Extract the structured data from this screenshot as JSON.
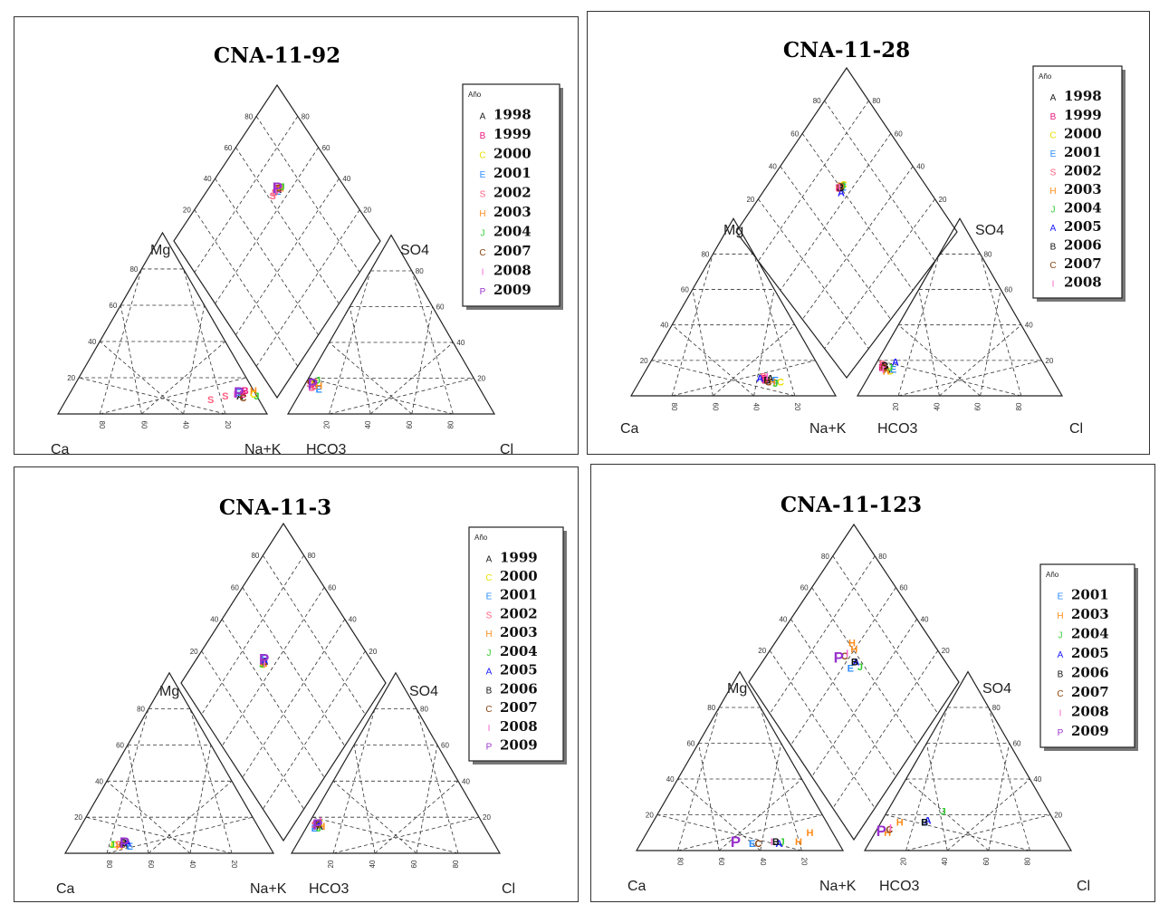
{
  "colors": {
    "A": "#222222",
    "B": "#e8197d",
    "C": "#e8e000",
    "E": "#2a8cff",
    "S": "#ff6080",
    "H": "#ff8c1a",
    "J": "#33cc33",
    "Ablue": "#1a1aff",
    "Bblack": "#111111",
    "Cbrown": "#8b4513",
    "I": "#ff66cc",
    "P": "#9933cc"
  },
  "chart_data": [
    {
      "type": "scatter",
      "subtype": "piper-diagram",
      "title": "CNA-11-92",
      "cation_labels": {
        "left": "Ca",
        "top": "Mg",
        "right": "Na+K"
      },
      "anion_labels": {
        "left": "HCO3",
        "top": "SO4",
        "right": "Cl"
      },
      "tick_labels": [
        "20",
        "40",
        "60",
        "80"
      ],
      "legend": {
        "title": "Año",
        "entries": [
          {
            "symbol": "A",
            "year": "1998",
            "color": "#222222"
          },
          {
            "symbol": "B",
            "year": "1999",
            "color": "#e8197d"
          },
          {
            "symbol": "C",
            "year": "2000",
            "color": "#e8e000"
          },
          {
            "symbol": "E",
            "year": "2001",
            "color": "#2a8cff"
          },
          {
            "symbol": "S",
            "year": "2002",
            "color": "#ff6080"
          },
          {
            "symbol": "H",
            "year": "2003",
            "color": "#ff8c1a"
          },
          {
            "symbol": "J",
            "year": "2004",
            "color": "#33cc33"
          },
          {
            "symbol": "C",
            "year": "2007",
            "color": "#8b4513"
          },
          {
            "symbol": "I",
            "year": "2008",
            "color": "#ff66cc"
          },
          {
            "symbol": "P",
            "year": "2009",
            "color": "#9933cc",
            "large": true
          }
        ]
      },
      "samples": [
        {
          "symbol": "A",
          "color": "#222222",
          "cation": [
            8,
            83
          ],
          "anion": [
            15,
            80
          ]
        },
        {
          "symbol": "B",
          "color": "#e8197d",
          "cation": [
            9,
            84
          ],
          "anion": [
            13,
            82
          ]
        },
        {
          "symbol": "B",
          "color": "#e8197d",
          "cation": [
            11,
            84
          ],
          "anion": [
            14,
            80
          ]
        },
        {
          "symbol": "C",
          "color": "#e8e000",
          "cation": [
            9,
            89
          ],
          "anion": [
            16,
            79
          ]
        },
        {
          "symbol": "E",
          "color": "#2a8cff",
          "cation": [
            10,
            81
          ],
          "anion": [
            12,
            79
          ]
        },
        {
          "symbol": "S",
          "color": "#ff6080",
          "cation": [
            6,
            70
          ],
          "anion": [
            15,
            82
          ]
        },
        {
          "symbol": "S",
          "color": "#ff6080",
          "cation": [
            8,
            76
          ],
          "anion": [
            13,
            82
          ]
        },
        {
          "symbol": "H",
          "color": "#ff8c1a",
          "cation": [
            11,
            88
          ],
          "anion": [
            14,
            78
          ]
        },
        {
          "symbol": "J",
          "color": "#33cc33",
          "cation": [
            8,
            91
          ],
          "anion": [
            17,
            77
          ]
        },
        {
          "symbol": "C",
          "color": "#8b4513",
          "cation": [
            7,
            85
          ],
          "anion": [
            16,
            81
          ]
        },
        {
          "symbol": "I",
          "color": "#ff66cc",
          "cation": [
            9,
            80
          ],
          "anion": [
            13,
            83
          ]
        },
        {
          "symbol": "P",
          "color": "#9933cc",
          "cation": [
            9,
            82
          ],
          "anion": [
            14,
            81
          ]
        }
      ]
    },
    {
      "type": "scatter",
      "subtype": "piper-diagram",
      "title": "CNA-11-28",
      "cation_labels": {
        "left": "Ca",
        "top": "Mg",
        "right": "Na+K"
      },
      "anion_labels": {
        "left": "HCO3",
        "top": "SO4",
        "right": "Cl"
      },
      "tick_labels": [
        "20",
        "40",
        "60",
        "80"
      ],
      "legend": {
        "title": "Año",
        "entries": [
          {
            "symbol": "A",
            "year": "1998",
            "color": "#222222"
          },
          {
            "symbol": "B",
            "year": "1999",
            "color": "#e8197d"
          },
          {
            "symbol": "C",
            "year": "2000",
            "color": "#e8e000"
          },
          {
            "symbol": "E",
            "year": "2001",
            "color": "#2a8cff"
          },
          {
            "symbol": "S",
            "year": "2002",
            "color": "#ff6080"
          },
          {
            "symbol": "H",
            "year": "2003",
            "color": "#ff8c1a"
          },
          {
            "symbol": "J",
            "year": "2004",
            "color": "#33cc33"
          },
          {
            "symbol": "A",
            "year": "2005",
            "color": "#1a1aff"
          },
          {
            "symbol": "B",
            "year": "2006",
            "color": "#111111"
          },
          {
            "symbol": "C",
            "year": "2007",
            "color": "#8b4513"
          },
          {
            "symbol": "I",
            "year": "2008",
            "color": "#ff66cc"
          }
        ]
      },
      "samples": [
        {
          "symbol": "A",
          "color": "#222222",
          "cation": [
            8,
            64
          ],
          "anion": [
            13,
            79
          ]
        },
        {
          "symbol": "B",
          "color": "#e8197d",
          "cation": [
            7,
            62
          ],
          "anion": [
            15,
            80
          ]
        },
        {
          "symbol": "B",
          "color": "#e8197d",
          "cation": [
            8,
            61
          ],
          "anion": [
            14,
            81
          ]
        },
        {
          "symbol": "C",
          "color": "#e8e000",
          "cation": [
            6,
            70
          ],
          "anion": [
            12,
            78
          ]
        },
        {
          "symbol": "E",
          "color": "#2a8cff",
          "cation": [
            7,
            67
          ],
          "anion": [
            13,
            76
          ]
        },
        {
          "symbol": "S",
          "color": "#ff6080",
          "cation": [
            9,
            60
          ],
          "anion": [
            16,
            80
          ]
        },
        {
          "symbol": "H",
          "color": "#ff8c1a",
          "cation": [
            6,
            66
          ],
          "anion": [
            12,
            80
          ]
        },
        {
          "symbol": "J",
          "color": "#33cc33",
          "cation": [
            5,
            68
          ],
          "anion": [
            14,
            77
          ]
        },
        {
          "symbol": "A",
          "color": "#1a1aff",
          "cation": [
            8,
            59
          ],
          "anion": [
            17,
            73
          ]
        },
        {
          "symbol": "B",
          "color": "#111111",
          "cation": [
            7,
            63
          ],
          "anion": [
            15,
            79
          ]
        },
        {
          "symbol": "C",
          "color": "#8b4513",
          "cation": [
            6,
            64
          ],
          "anion": [
            14,
            80
          ]
        },
        {
          "symbol": "I",
          "color": "#ff66cc",
          "cation": [
            9,
            62
          ],
          "anion": [
            13,
            81
          ]
        }
      ]
    },
    {
      "type": "scatter",
      "subtype": "piper-diagram",
      "title": "CNA-11-3",
      "cation_labels": {
        "left": "Ca",
        "top": "Mg",
        "right": "Na+K"
      },
      "anion_labels": {
        "left": "HCO3",
        "top": "SO4",
        "right": "Cl"
      },
      "tick_labels": [
        "20",
        "40",
        "60",
        "80"
      ],
      "legend": {
        "title": "Año",
        "entries": [
          {
            "symbol": "A",
            "year": "1999",
            "color": "#222222"
          },
          {
            "symbol": "C",
            "year": "2000",
            "color": "#e8e000"
          },
          {
            "symbol": "E",
            "year": "2001",
            "color": "#2a8cff"
          },
          {
            "symbol": "S",
            "year": "2002",
            "color": "#ff6080"
          },
          {
            "symbol": "H",
            "year": "2003",
            "color": "#ff8c1a"
          },
          {
            "symbol": "J",
            "year": "2004",
            "color": "#33cc33"
          },
          {
            "symbol": "A",
            "year": "2005",
            "color": "#1a1aff"
          },
          {
            "symbol": "B",
            "year": "2006",
            "color": "#111111"
          },
          {
            "symbol": "C",
            "year": "2007",
            "color": "#8b4513"
          },
          {
            "symbol": "I",
            "year": "2008",
            "color": "#ff66cc"
          },
          {
            "symbol": "P",
            "year": "2009",
            "color": "#9933cc",
            "large": true
          }
        ]
      },
      "samples": [
        {
          "symbol": "A",
          "color": "#222222",
          "cation": [
            3,
            27
          ],
          "anion": [
            13,
            80
          ]
        },
        {
          "symbol": "B",
          "color": "#111111",
          "cation": [
            4,
            26
          ],
          "anion": [
            14,
            81
          ]
        },
        {
          "symbol": "C",
          "color": "#e8e000",
          "cation": [
            3,
            22
          ],
          "anion": [
            15,
            79
          ]
        },
        {
          "symbol": "E",
          "color": "#2a8cff",
          "cation": [
            2,
            30
          ],
          "anion": [
            12,
            83
          ]
        },
        {
          "symbol": "S",
          "color": "#ff6080",
          "cation": [
            3,
            24
          ],
          "anion": [
            14,
            82
          ]
        },
        {
          "symbol": "H",
          "color": "#ff8c1a",
          "cation": [
            2,
            25
          ],
          "anion": [
            13,
            79
          ]
        },
        {
          "symbol": "J",
          "color": "#33cc33",
          "cation": [
            3,
            21
          ],
          "anion": [
            12,
            81
          ]
        },
        {
          "symbol": "A",
          "color": "#1a1aff",
          "cation": [
            4,
            28
          ],
          "anion": [
            15,
            80
          ]
        },
        {
          "symbol": "C",
          "color": "#8b4513",
          "cation": [
            3,
            26
          ],
          "anion": [
            14,
            80
          ]
        },
        {
          "symbol": "I",
          "color": "#ff66cc",
          "cation": [
            4,
            25
          ],
          "anion": [
            16,
            78
          ]
        },
        {
          "symbol": "P",
          "color": "#9933cc",
          "cation": [
            3,
            27
          ],
          "anion": [
            13,
            81
          ]
        }
      ]
    },
    {
      "type": "scatter",
      "subtype": "piper-diagram",
      "title": "CNA-11-123",
      "cation_labels": {
        "left": "Ca",
        "top": "Mg",
        "right": "Na+K"
      },
      "anion_labels": {
        "left": "HCO3",
        "top": "SO4",
        "right": "Cl"
      },
      "tick_labels": [
        "20",
        "40",
        "60",
        "80"
      ],
      "legend": {
        "title": "Año",
        "entries": [
          {
            "symbol": "E",
            "year": "2001",
            "color": "#2a8cff"
          },
          {
            "symbol": "H",
            "year": "2003",
            "color": "#ff8c1a"
          },
          {
            "symbol": "J",
            "year": "2004",
            "color": "#33cc33"
          },
          {
            "symbol": "A",
            "year": "2005",
            "color": "#1a1aff"
          },
          {
            "symbol": "B",
            "year": "2006",
            "color": "#111111"
          },
          {
            "symbol": "C",
            "year": "2007",
            "color": "#8b4513"
          },
          {
            "symbol": "I",
            "year": "2008",
            "color": "#ff66cc"
          },
          {
            "symbol": "P",
            "year": "2009",
            "color": "#9933cc",
            "large": true
          }
        ]
      },
      "samples": [
        {
          "symbol": "E",
          "color": "#2a8cff",
          "cation": [
            2,
            55
          ],
          "anion": [
            14,
            64
          ]
        },
        {
          "symbol": "H",
          "color": "#ff8c1a",
          "cation": [
            8,
            80
          ],
          "anion": [
            8,
            85
          ]
        },
        {
          "symbol": "H",
          "color": "#ff8c1a",
          "cation": [
            3,
            77
          ],
          "anion": [
            14,
            76
          ]
        },
        {
          "symbol": "J",
          "color": "#33cc33",
          "cation": [
            3,
            69
          ],
          "anion": [
            20,
            52
          ]
        },
        {
          "symbol": "A",
          "color": "#1a1aff",
          "cation": [
            2,
            68
          ],
          "anion": [
            15,
            62
          ]
        },
        {
          "symbol": "B",
          "color": "#111111",
          "cation": [
            3,
            66
          ],
          "anion": [
            14,
            64
          ]
        },
        {
          "symbol": "C",
          "color": "#8b4513",
          "cation": [
            2,
            58
          ],
          "anion": [
            10,
            83
          ]
        },
        {
          "symbol": "I",
          "color": "#ff66cc",
          "cation": [
            3,
            64
          ],
          "anion": [
            11,
            82
          ]
        },
        {
          "symbol": "P",
          "color": "#9933cc",
          "cation": [
            2,
            47
          ],
          "anion": [
            8,
            88
          ]
        }
      ]
    }
  ]
}
